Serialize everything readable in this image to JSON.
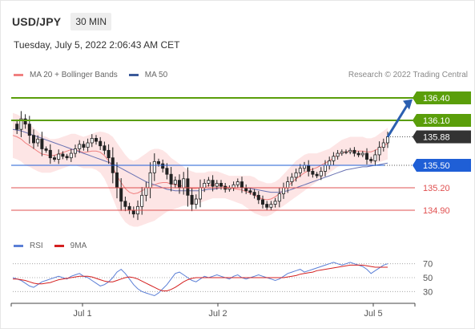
{
  "header": {
    "pair": "USD/JPY",
    "timeframe": "30 MIN",
    "timestamp": "Tuesday, July 5, 2022 2:06:43 AM CET",
    "credit": "Research © 2022 Trading Central"
  },
  "colors": {
    "bollinger": "#f08080",
    "bollinger_fill": "#fde0e0",
    "ma50": "#6a73b3",
    "resistance": "#5a9e0a",
    "support": "#1f5fd6",
    "minor_level": "#e05050",
    "current": "#333333",
    "rsi": "#5b7fd6",
    "rsi_ma": "#d42020",
    "arrow": "#2b5fb0"
  },
  "legend": {
    "bollinger": "MA 20 + Bollinger Bands",
    "ma50": "MA 50"
  },
  "rsi_legend": {
    "rsi": "RSI",
    "ma": "9MA"
  },
  "chart_data": [
    {
      "type": "candlestick",
      "x_tick_labels": [
        "Jul 1",
        "Jul 2",
        "Jul 5"
      ],
      "ylim": [
        134.6,
        136.55
      ],
      "grid": false,
      "levels": [
        {
          "label": "136.40",
          "value": 136.4,
          "kind": "resistance"
        },
        {
          "label": "136.10",
          "value": 136.1,
          "kind": "resistance"
        },
        {
          "label": "135.88",
          "value": 135.88,
          "kind": "current"
        },
        {
          "label": "135.50",
          "value": 135.5,
          "kind": "support"
        },
        {
          "label": "135.20",
          "value": 135.2,
          "kind": "minor"
        },
        {
          "label": "134.90",
          "value": 134.9,
          "kind": "minor"
        }
      ],
      "arrow": {
        "from": 135.88,
        "to": 136.35
      },
      "close_path": [
        136.05,
        135.98,
        136.12,
        136.05,
        135.9,
        135.8,
        135.85,
        135.72,
        135.7,
        135.6,
        135.58,
        135.65,
        135.62,
        135.6,
        135.66,
        135.72,
        135.78,
        135.74,
        135.8,
        135.86,
        135.82,
        135.76,
        135.7,
        135.6,
        135.4,
        135.2,
        135.02,
        134.95,
        134.9,
        134.85,
        134.95,
        135.1,
        135.2,
        135.4,
        135.55,
        135.52,
        135.46,
        135.38,
        135.25,
        135.3,
        135.2,
        135.32,
        135.1,
        134.98,
        135.05,
        135.2,
        135.26,
        135.3,
        135.22,
        135.26,
        135.22,
        135.18,
        135.2,
        135.24,
        135.28,
        135.2,
        135.16,
        135.14,
        135.1,
        135.04,
        134.98,
        134.94,
        134.98,
        135.02,
        135.12,
        135.2,
        135.28,
        135.34,
        135.4,
        135.46,
        135.5,
        135.42,
        135.38,
        135.36,
        135.42,
        135.5,
        135.56,
        135.62,
        135.66,
        135.68,
        135.68,
        135.7,
        135.66,
        135.64,
        135.66,
        135.58,
        135.56,
        135.64,
        135.74,
        135.8,
        135.88
      ],
      "bollinger_upper": [
        136.2,
        136.18,
        136.15,
        136.1,
        136.05,
        136.0,
        135.95,
        135.9,
        135.88,
        135.85,
        135.85,
        135.86,
        135.88,
        135.9,
        135.92,
        135.92,
        135.9,
        135.88,
        135.9,
        135.92,
        135.94,
        135.95,
        135.94,
        135.92,
        135.88,
        135.8,
        135.72,
        135.64,
        135.58,
        135.56,
        135.58,
        135.62,
        135.66,
        135.7,
        135.72,
        135.72,
        135.7,
        135.66,
        135.6,
        135.56,
        135.52,
        135.48,
        135.44,
        135.42,
        135.4,
        135.4,
        135.4,
        135.42,
        135.42,
        135.42,
        135.4,
        135.38,
        135.36,
        135.36,
        135.36,
        135.36,
        135.36,
        135.36,
        135.34,
        135.3,
        135.28,
        135.26,
        135.26,
        135.28,
        135.32,
        135.38,
        135.44,
        135.5,
        135.56,
        135.6,
        135.64,
        135.66,
        135.66,
        135.66,
        135.68,
        135.7,
        135.72,
        135.76,
        135.8,
        135.84,
        135.86,
        135.88,
        135.88,
        135.88,
        135.88,
        135.86,
        135.86,
        135.88,
        135.92,
        135.96,
        136.0
      ],
      "bollinger_lower": [
        135.6,
        135.58,
        135.55,
        135.5,
        135.48,
        135.45,
        135.42,
        135.4,
        135.4,
        135.4,
        135.42,
        135.44,
        135.46,
        135.48,
        135.5,
        135.5,
        135.48,
        135.46,
        135.46,
        135.46,
        135.44,
        135.4,
        135.32,
        135.2,
        135.06,
        134.92,
        134.82,
        134.74,
        134.7,
        134.68,
        134.68,
        134.7,
        134.72,
        134.74,
        134.76,
        134.8,
        134.84,
        134.88,
        134.9,
        134.92,
        134.94,
        134.96,
        134.96,
        134.96,
        134.98,
        135.0,
        135.02,
        135.04,
        135.06,
        135.06,
        135.06,
        135.06,
        135.04,
        135.02,
        135.0,
        134.98,
        134.94,
        134.9,
        134.86,
        134.84,
        134.82,
        134.82,
        134.84,
        134.88,
        134.92,
        134.96,
        135.0,
        135.04,
        135.08,
        135.12,
        135.16,
        135.2,
        135.24,
        135.28,
        135.32,
        135.36,
        135.4,
        135.44,
        135.48,
        135.5,
        135.5,
        135.5,
        135.5,
        135.5,
        135.5,
        135.5,
        135.5,
        135.52,
        135.54,
        135.56,
        135.58
      ],
      "ma50": [
        135.98,
        135.97,
        135.96,
        135.94,
        135.92,
        135.9,
        135.88,
        135.86,
        135.84,
        135.82,
        135.8,
        135.78,
        135.76,
        135.74,
        135.72,
        135.7,
        135.68,
        135.66,
        135.64,
        135.62,
        135.6,
        135.58,
        135.56,
        135.54,
        135.52,
        135.49,
        135.46,
        135.43,
        135.4,
        135.37,
        135.34,
        135.31,
        135.28,
        135.26,
        135.24,
        135.22,
        135.2,
        135.18,
        135.17,
        135.16,
        135.16,
        135.16,
        135.16,
        135.16,
        135.16,
        135.16,
        135.17,
        135.18,
        135.18,
        135.19,
        135.2,
        135.2,
        135.2,
        135.2,
        135.2,
        135.2,
        135.2,
        135.19,
        135.18,
        135.17,
        135.16,
        135.15,
        135.14,
        135.14,
        135.14,
        135.15,
        135.16,
        135.18,
        135.2,
        135.22,
        135.24,
        135.26,
        135.28,
        135.3,
        135.32,
        135.34,
        135.36,
        135.38,
        135.4,
        135.42,
        135.44,
        135.45,
        135.46,
        135.47,
        135.48,
        135.48,
        135.49,
        135.5,
        135.51,
        135.52,
        135.53
      ]
    },
    {
      "type": "line",
      "name": "RSI",
      "y_tick_labels": [
        "70",
        "50",
        "30"
      ],
      "ylim": [
        20,
        80
      ],
      "rsi": [
        50,
        48,
        46,
        42,
        38,
        36,
        40,
        44,
        46,
        48,
        50,
        52,
        50,
        48,
        52,
        54,
        56,
        52,
        50,
        46,
        42,
        38,
        40,
        44,
        50,
        58,
        62,
        56,
        48,
        40,
        34,
        30,
        28,
        26,
        24,
        28,
        34,
        40,
        48,
        56,
        58,
        54,
        50,
        46,
        44,
        48,
        52,
        50,
        52,
        54,
        52,
        50,
        48,
        52,
        54,
        50,
        48,
        50,
        52,
        54,
        52,
        50,
        48,
        46,
        48,
        52,
        56,
        58,
        60,
        62,
        58,
        60,
        62,
        64,
        66,
        68,
        70,
        72,
        70,
        68,
        70,
        72,
        70,
        68,
        66,
        62,
        56,
        60,
        64,
        68,
        70
      ],
      "rsi_ma": [
        48,
        48,
        47,
        46,
        44,
        42,
        41,
        41,
        42,
        43,
        45,
        47,
        48,
        49,
        50,
        51,
        52,
        52,
        52,
        51,
        49,
        47,
        45,
        44,
        44,
        46,
        48,
        50,
        51,
        50,
        48,
        45,
        42,
        39,
        36,
        33,
        31,
        31,
        33,
        36,
        40,
        44,
        47,
        49,
        50,
        50,
        50,
        50,
        50,
        50,
        50,
        50,
        50,
        50,
        50,
        50,
        50,
        50,
        50,
        50,
        50,
        50,
        50,
        50,
        50,
        50,
        51,
        52,
        53,
        55,
        56,
        57,
        58,
        60,
        61,
        62,
        63,
        64,
        65,
        66,
        67,
        68,
        68,
        68,
        68,
        67,
        66,
        65,
        65,
        65,
        65
      ]
    }
  ]
}
